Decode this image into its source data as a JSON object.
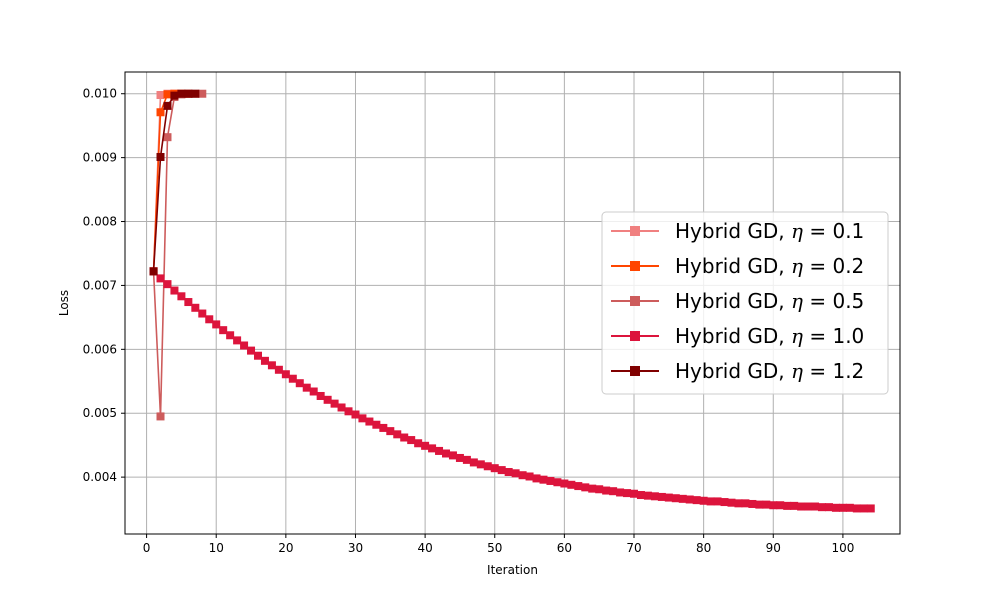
{
  "chart_data": {
    "type": "line",
    "title": "",
    "xlabel": "Iteration",
    "ylabel": "Loss",
    "xlim": [
      -3.1,
      108.2
    ],
    "ylim": [
      0.00311,
      0.01034
    ],
    "xticks": [
      0,
      10,
      20,
      30,
      40,
      50,
      60,
      70,
      80,
      90,
      100
    ],
    "xtick_labels": [
      "0",
      "10",
      "20",
      "30",
      "40",
      "50",
      "60",
      "70",
      "80",
      "90",
      "100"
    ],
    "yticks": [
      0.004,
      0.005,
      0.006,
      0.007,
      0.008,
      0.009,
      0.01
    ],
    "ytick_labels": [
      "0.004",
      "0.005",
      "0.006",
      "0.007",
      "0.008",
      "0.009",
      "0.010"
    ],
    "grid": true,
    "legend_position": "center-right",
    "series": [
      {
        "name": "Hybrid GD, η = 0.1",
        "legend_prefix": "Hybrid GD, ",
        "legend_symbol": "η",
        "legend_value": " = 0.1",
        "color": "#f08080",
        "marker": "square",
        "x": [
          1,
          2,
          3,
          4,
          5,
          6
        ],
        "y": [
          0.00722,
          0.00998,
          0.01,
          0.01,
          0.01,
          0.01
        ]
      },
      {
        "name": "Hybrid GD, η = 0.2",
        "legend_prefix": "Hybrid GD, ",
        "legend_symbol": "η",
        "legend_value": " = 0.2",
        "color": "#ff4500",
        "marker": "square",
        "x": [
          1,
          2,
          3,
          4,
          5,
          6
        ],
        "y": [
          0.00722,
          0.00971,
          0.00999,
          0.01,
          0.01,
          0.01
        ]
      },
      {
        "name": "Hybrid GD, η = 0.5",
        "legend_prefix": "Hybrid GD, ",
        "legend_symbol": "η",
        "legend_value": " = 0.5",
        "color": "#cd5c5c",
        "marker": "square",
        "x": [
          1,
          2,
          3,
          4,
          5,
          6,
          7,
          8
        ],
        "y": [
          0.00722,
          0.00495,
          0.00932,
          0.00995,
          0.00999,
          0.01,
          0.01,
          0.01
        ]
      },
      {
        "name": "Hybrid GD, η = 1.0",
        "legend_prefix": "Hybrid GD, ",
        "legend_symbol": "η",
        "legend_value": " = 1.0",
        "color": "#dc143c",
        "marker": "square",
        "x": [
          1,
          2,
          3,
          4,
          5,
          6,
          7,
          8,
          9,
          10,
          11,
          12,
          13,
          14,
          15,
          16,
          17,
          18,
          19,
          20,
          21,
          22,
          23,
          24,
          25,
          26,
          27,
          28,
          29,
          30,
          31,
          32,
          33,
          34,
          35,
          36,
          37,
          38,
          39,
          40,
          41,
          42,
          43,
          44,
          45,
          46,
          47,
          48,
          49,
          50,
          51,
          52,
          53,
          54,
          55,
          56,
          57,
          58,
          59,
          60,
          61,
          62,
          63,
          64,
          65,
          66,
          67,
          68,
          69,
          70,
          71,
          72,
          73,
          74,
          75,
          76,
          77,
          78,
          79,
          80,
          81,
          82,
          83,
          84,
          85,
          86,
          87,
          88,
          89,
          90,
          91,
          92,
          93,
          94,
          95,
          96,
          97,
          98,
          99,
          100,
          101,
          102,
          103,
          104
        ],
        "y": [
          0.00722,
          0.00711,
          0.00702,
          0.00692,
          0.00683,
          0.00674,
          0.00665,
          0.00656,
          0.00647,
          0.00639,
          0.0063,
          0.00622,
          0.00614,
          0.00606,
          0.00598,
          0.0059,
          0.00582,
          0.00575,
          0.00568,
          0.00561,
          0.00554,
          0.00547,
          0.0054,
          0.00534,
          0.00527,
          0.00521,
          0.00515,
          0.00509,
          0.00503,
          0.00498,
          0.00492,
          0.00487,
          0.00482,
          0.00477,
          0.00472,
          0.00467,
          0.00462,
          0.00458,
          0.00453,
          0.00449,
          0.00445,
          0.00441,
          0.00437,
          0.00434,
          0.0043,
          0.00427,
          0.00423,
          0.0042,
          0.00417,
          0.00414,
          0.00411,
          0.00408,
          0.00406,
          0.00403,
          0.00401,
          0.00398,
          0.00396,
          0.00394,
          0.00392,
          0.0039,
          0.00388,
          0.00386,
          0.00384,
          0.00382,
          0.00381,
          0.00379,
          0.00378,
          0.00376,
          0.00375,
          0.00374,
          0.00372,
          0.00371,
          0.0037,
          0.00369,
          0.00368,
          0.00367,
          0.00366,
          0.00365,
          0.00364,
          0.00363,
          0.00362,
          0.00362,
          0.00361,
          0.0036,
          0.00359,
          0.00359,
          0.00358,
          0.00357,
          0.00357,
          0.00356,
          0.00356,
          0.00355,
          0.00355,
          0.00354,
          0.00354,
          0.00354,
          0.00353,
          0.00353,
          0.00352,
          0.00352,
          0.00352,
          0.00351,
          0.00351,
          0.00351
        ]
      },
      {
        "name": "Hybrid GD, η = 1.2",
        "legend_prefix": "Hybrid GD, ",
        "legend_symbol": "η",
        "legend_value": " = 1.2",
        "color": "#800000",
        "marker": "square",
        "x": [
          1,
          2,
          3,
          4,
          5,
          6,
          7
        ],
        "y": [
          0.00722,
          0.00901,
          0.00981,
          0.00997,
          0.01,
          0.01,
          0.01
        ]
      }
    ]
  }
}
